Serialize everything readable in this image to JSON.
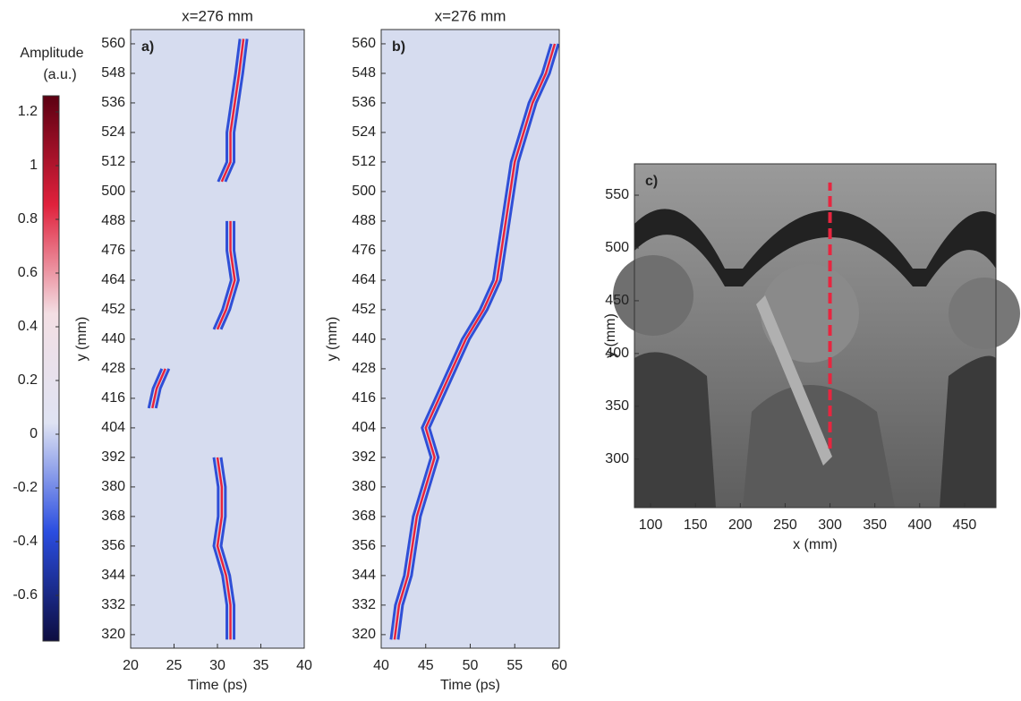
{
  "chart_data": [
    {
      "type": "colorbar",
      "label_lines": [
        "Amplitude",
        "(a.u.)"
      ],
      "clim": [
        -0.77,
        1.26
      ],
      "ticks": [
        1.2,
        1,
        0.8,
        0.6,
        0.4,
        0.2,
        0,
        -0.2,
        -0.4,
        -0.6
      ],
      "colormap": [
        "#0d0d40",
        "#2a4de0",
        "#dfe3f3",
        "#f3dfe4",
        "#e0213c",
        "#5c0012"
      ]
    },
    {
      "type": "heatmap",
      "title": "x=276 mm",
      "panel_label": "a)",
      "xlabel": "Time (ps)",
      "ylabel": "y (mm)",
      "xlim": [
        20,
        40
      ],
      "xticks": [
        20,
        25,
        30,
        35,
        40
      ],
      "ylim": [
        314.5,
        565.8
      ],
      "yticks": [
        320,
        332,
        344,
        356,
        368,
        380,
        392,
        404,
        416,
        428,
        440,
        452,
        464,
        476,
        488,
        500,
        512,
        524,
        536,
        548,
        560
      ],
      "background": "#d6dcef",
      "pos_color": "#e8243c",
      "neg_color": "#2f4fd6",
      "y": [
        562,
        548,
        536,
        524,
        512,
        504,
        496,
        488,
        476,
        464,
        452,
        444,
        436,
        428,
        420,
        412,
        400,
        392,
        380,
        368,
        356,
        344,
        332,
        318
      ],
      "ridge_time": [
        33,
        32.5,
        32,
        31.5,
        31.5,
        30.5,
        null,
        31.5,
        31.5,
        32,
        31,
        30,
        null,
        24,
        23,
        22.5,
        null,
        30,
        30.5,
        30.5,
        30,
        31,
        31.5,
        31.5
      ]
    },
    {
      "type": "heatmap",
      "title": "x=276 mm",
      "panel_label": "b)",
      "xlabel": "Time (ps)",
      "ylabel": "y (mm)",
      "xlim": [
        40,
        60
      ],
      "xticks": [
        40,
        45,
        50,
        55,
        60
      ],
      "ylim": [
        314.5,
        565.8
      ],
      "yticks": [
        320,
        332,
        344,
        356,
        368,
        380,
        392,
        404,
        416,
        428,
        440,
        452,
        464,
        476,
        488,
        500,
        512,
        524,
        536,
        548,
        560
      ],
      "background": "#d6dcef",
      "pos_color": "#e8243c",
      "neg_color": "#2f4fd6",
      "y": [
        318,
        332,
        344,
        356,
        368,
        380,
        392,
        404,
        416,
        428,
        440,
        452,
        464,
        476,
        488,
        500,
        512,
        524,
        536,
        548,
        560
      ],
      "ridge_time": [
        41.5,
        42,
        43,
        43.5,
        44,
        45,
        46,
        45,
        46.5,
        48,
        49.5,
        51.5,
        53,
        53.5,
        54,
        54.5,
        55,
        56,
        57,
        58.5,
        59.5
      ]
    },
    {
      "type": "image",
      "panel_label": "c)",
      "xlabel": "x (mm)",
      "ylabel": "y (mm)",
      "xlim": [
        82,
        485
      ],
      "xticks": [
        100,
        150,
        200,
        250,
        300,
        350,
        400,
        450
      ],
      "ylim": [
        254,
        579.7
      ],
      "yticks": [
        300,
        350,
        400,
        450,
        500,
        550
      ],
      "line": {
        "x": [
          300,
          300
        ],
        "y": [
          310,
          562
        ],
        "color": "#e8253f"
      }
    }
  ]
}
